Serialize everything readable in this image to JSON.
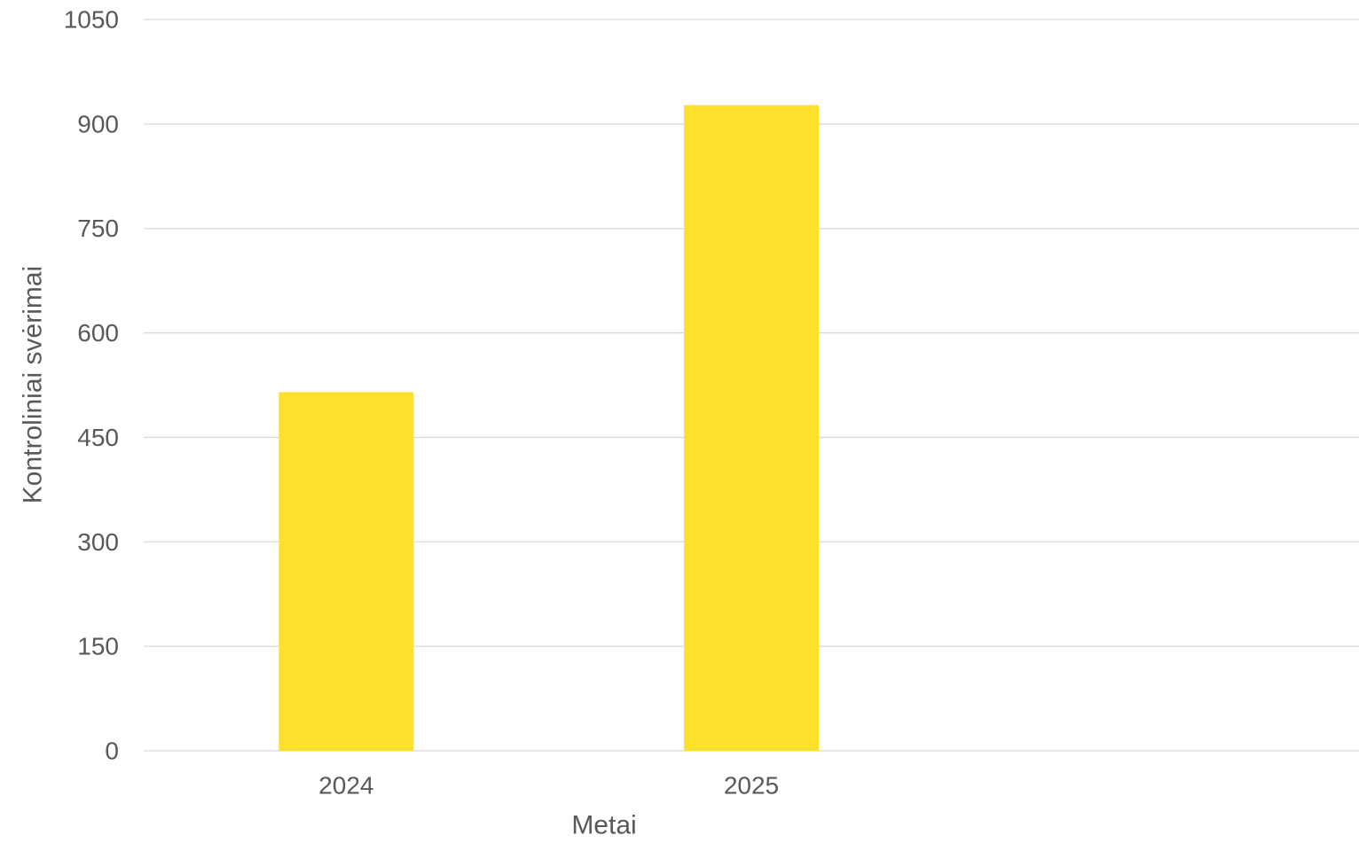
{
  "chart_data": {
    "type": "bar",
    "title": "",
    "categories": [
      "2024",
      "2025",
      ""
    ],
    "values": [
      515,
      927,
      null
    ],
    "xlabel": "Metai",
    "ylabel": "Kontroliniai svėrimai",
    "ylim": [
      0,
      1050
    ],
    "yticks": [
      "0",
      "150",
      "300",
      "450",
      "600",
      "750",
      "900",
      "1050"
    ],
    "grid": true,
    "legend": "none",
    "colors": {
      "bar": "#FCE02B",
      "grid": "#D9D9D9",
      "text": "#595959"
    }
  }
}
